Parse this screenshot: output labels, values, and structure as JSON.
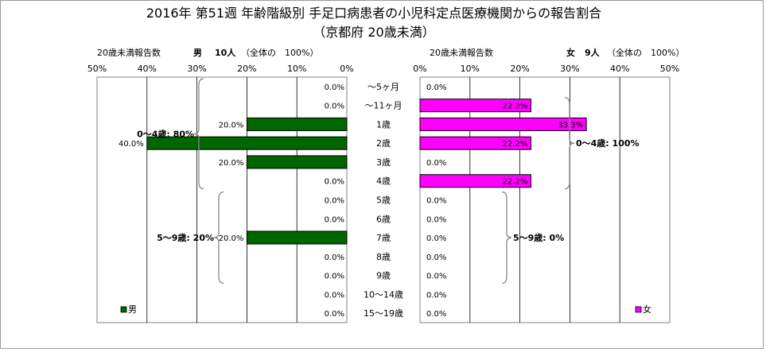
{
  "title_line1": "2016年 第51週 年齢階級別 手足口病患者の小児科定点医療機関からの報告割合",
  "title_line2": "（京都府 20歳未満）",
  "colors": {
    "male": "#006600",
    "female": "#ff00ff",
    "grid": "#000000",
    "background": "#ffffff"
  },
  "chart_data": [
    {
      "type": "bar",
      "orientation": "horizontal",
      "panel": "male",
      "direction": "right-to-left",
      "header_label": "20歳未満報告数",
      "header_sex": "男",
      "header_count": "10人",
      "header_note": "（全体の　100%）",
      "legend": "男",
      "xlim": [
        0,
        50
      ],
      "x_ticks": [
        "50%",
        "40%",
        "30%",
        "20%",
        "10%",
        "0%"
      ],
      "categories": [
        "～5ヶ月",
        "～11ヶ月",
        "1歳",
        "2歳",
        "3歳",
        "4歳",
        "5歳",
        "6歳",
        "7歳",
        "8歳",
        "9歳",
        "10～14歳",
        "15～19歳"
      ],
      "values": [
        0.0,
        0.0,
        20.0,
        40.0,
        20.0,
        0.0,
        0.0,
        0.0,
        20.0,
        0.0,
        0.0,
        0.0,
        0.0
      ],
      "value_labels": [
        "0.0%",
        "0.0%",
        "20.0%",
        "40.0%",
        "20.0%",
        "0.0%",
        "0.0%",
        "0.0%",
        "20.0%",
        "0.0%",
        "0.0%",
        "0.0%",
        "0.0%"
      ],
      "groups": [
        {
          "label": "0～4歳: 80%",
          "from": 0,
          "to": 5
        },
        {
          "label": "5～9歳: 20%",
          "from": 6,
          "to": 10
        }
      ],
      "grid": true,
      "legend_position": "bottom-left"
    },
    {
      "type": "bar",
      "orientation": "horizontal",
      "panel": "female",
      "direction": "left-to-right",
      "header_label": "20歳未満報告数",
      "header_sex": "女",
      "header_count": "9人",
      "header_note": "（全体の　100%）",
      "legend": "女",
      "xlim": [
        0,
        50
      ],
      "x_ticks": [
        "0%",
        "10%",
        "20%",
        "30%",
        "40%",
        "50%"
      ],
      "categories": [
        "～5ヶ月",
        "～11ヶ月",
        "1歳",
        "2歳",
        "3歳",
        "4歳",
        "5歳",
        "6歳",
        "7歳",
        "8歳",
        "9歳",
        "10～14歳",
        "15～19歳"
      ],
      "values": [
        0.0,
        22.2,
        33.3,
        22.2,
        0.0,
        22.2,
        0.0,
        0.0,
        0.0,
        0.0,
        0.0,
        0.0,
        0.0
      ],
      "value_labels": [
        "0.0%",
        "22.2%",
        "33.3%",
        "22.2%",
        "0.0%",
        "22.2%",
        "0.0%",
        "0.0%",
        "0.0%",
        "0.0%",
        "0.0%",
        "0.0%",
        "0.0%"
      ],
      "groups": [
        {
          "label": "0～4歳: 100%",
          "from": 1,
          "to": 5
        },
        {
          "label": "5～9歳: 0%",
          "from": 6,
          "to": 10
        }
      ],
      "grid": true,
      "legend_position": "bottom-right"
    }
  ]
}
